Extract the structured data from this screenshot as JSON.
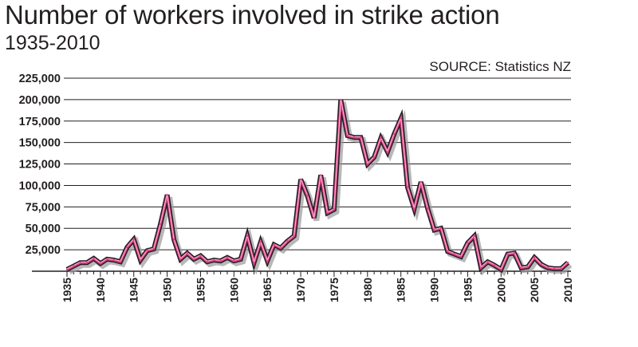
{
  "title": "Number of workers involved in strike action",
  "subtitle": "1935-2010",
  "source": "SOURCE: Statistics NZ",
  "colors": {
    "line_fill": "#e0408a",
    "line_outline": "#231f20",
    "grid": "#231f20"
  },
  "chart_data": {
    "type": "line",
    "title": "Number of workers involved in strike action",
    "subtitle": "1935-2010",
    "xlabel": "",
    "ylabel": "",
    "xlim": [
      1935,
      2010
    ],
    "ylim": [
      0,
      225000
    ],
    "grid": true,
    "yticks": [
      {
        "value": 25000,
        "label": "25,000"
      },
      {
        "value": 50000,
        "label": "50,000"
      },
      {
        "value": 75000,
        "label": "75,000"
      },
      {
        "value": 100000,
        "label": "100,000"
      },
      {
        "value": 125000,
        "label": "125,000"
      },
      {
        "value": 150000,
        "label": "150,000"
      },
      {
        "value": 175000,
        "label": "175,000"
      },
      {
        "value": 200000,
        "label": "200,000"
      },
      {
        "value": 225000,
        "label": "225,000"
      }
    ],
    "xticks": [
      {
        "value": 1935,
        "label": "1935"
      },
      {
        "value": 1940,
        "label": "1940"
      },
      {
        "value": 1945,
        "label": "1945"
      },
      {
        "value": 1950,
        "label": "1950"
      },
      {
        "value": 1955,
        "label": "1955"
      },
      {
        "value": 1960,
        "label": "1960"
      },
      {
        "value": 1965,
        "label": "1965"
      },
      {
        "value": 1970,
        "label": "1970"
      },
      {
        "value": 1975,
        "label": "1975"
      },
      {
        "value": 1980,
        "label": "1980"
      },
      {
        "value": 1985,
        "label": "1985"
      },
      {
        "value": 1990,
        "label": "1990"
      },
      {
        "value": 1995,
        "label": "1995"
      },
      {
        "value": 2000,
        "label": "2000"
      },
      {
        "value": 2005,
        "label": "2005"
      },
      {
        "value": 2010,
        "label": "2010"
      }
    ],
    "x": [
      1935,
      1936,
      1937,
      1938,
      1939,
      1940,
      1941,
      1942,
      1943,
      1944,
      1945,
      1946,
      1947,
      1948,
      1949,
      1950,
      1951,
      1952,
      1953,
      1954,
      1955,
      1956,
      1957,
      1958,
      1959,
      1960,
      1961,
      1962,
      1963,
      1964,
      1965,
      1966,
      1967,
      1968,
      1969,
      1970,
      1971,
      1972,
      1973,
      1974,
      1975,
      1976,
      1977,
      1978,
      1979,
      1980,
      1981,
      1982,
      1983,
      1984,
      1985,
      1986,
      1987,
      1988,
      1989,
      1990,
      1991,
      1992,
      1993,
      1994,
      1995,
      1996,
      1997,
      1998,
      1999,
      2000,
      2001,
      2002,
      2003,
      2004,
      2005,
      2006,
      2007,
      2008,
      2009,
      2010
    ],
    "series": [
      {
        "values": [
          2000,
          6000,
          10000,
          10000,
          15000,
          9000,
          14000,
          13000,
          11000,
          28000,
          37000,
          13000,
          24000,
          26000,
          55000,
          89000,
          37000,
          14000,
          21000,
          14000,
          18000,
          11000,
          13000,
          12000,
          16000,
          12000,
          14000,
          41000,
          10000,
          34000,
          12000,
          31000,
          27000,
          35000,
          41000,
          107000,
          88000,
          62000,
          112000,
          68000,
          72000,
          200000,
          158000,
          156000,
          156000,
          125000,
          133000,
          155000,
          139000,
          160000,
          178000,
          98000,
          73000,
          104000,
          73000,
          48000,
          50000,
          23000,
          20000,
          17000,
          33000,
          41000,
          4000,
          11000,
          7000,
          2000,
          20000,
          21000,
          4000,
          5000,
          16000,
          8000,
          4000,
          3000,
          3000,
          10000
        ]
      }
    ]
  }
}
